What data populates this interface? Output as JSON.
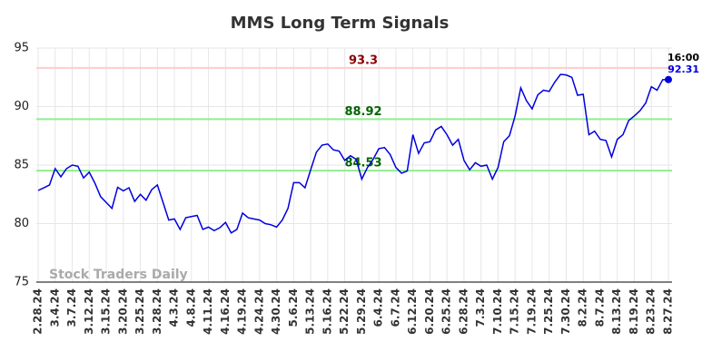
{
  "chart_data": {
    "type": "line",
    "title": "MMS Long Term Signals",
    "watermark": "Stock Traders Daily",
    "categories": [
      "2.28.24",
      null,
      null,
      "3.4.24",
      null,
      null,
      "3.7.24",
      null,
      null,
      "3.12.24",
      null,
      null,
      "3.15.24",
      null,
      null,
      "3.20.24",
      null,
      null,
      "3.25.24",
      null,
      null,
      "3.28.24",
      null,
      null,
      "4.3.24",
      null,
      null,
      "4.8.24",
      null,
      null,
      "4.11.24",
      null,
      null,
      "4.16.24",
      null,
      null,
      "4.19.24",
      null,
      null,
      "4.24.24",
      null,
      null,
      "4.30.24",
      null,
      null,
      "5.6.24",
      null,
      null,
      "5.13.24",
      null,
      null,
      "5.16.24",
      null,
      null,
      "5.22.24",
      null,
      null,
      "5.29.24",
      null,
      null,
      "6.4.24",
      null,
      null,
      "6.7.24",
      null,
      null,
      "6.12.24",
      null,
      null,
      "6.20.24",
      null,
      null,
      "6.25.24",
      null,
      null,
      "6.28.24",
      null,
      null,
      "7.3.24",
      null,
      null,
      "7.10.24",
      null,
      null,
      "7.15.24",
      null,
      null,
      "7.19.24",
      null,
      null,
      "7.25.24",
      null,
      null,
      "7.30.24",
      null,
      null,
      "8.2.24",
      null,
      null,
      "8.7.24",
      null,
      null,
      "8.13.24",
      null,
      null,
      "8.19.24",
      null,
      null,
      "8.23.24",
      null,
      null,
      "8.27.24"
    ],
    "series": [
      {
        "name": "MMS",
        "color": "#0000dd",
        "values": [
          82.83,
          83.06,
          83.3,
          84.7,
          84.0,
          84.7,
          85.0,
          84.9,
          83.9,
          84.4,
          83.45,
          82.3,
          81.8,
          81.3,
          83.1,
          82.8,
          83.06,
          81.9,
          82.5,
          82.0,
          82.9,
          83.3,
          81.8,
          80.3,
          80.4,
          79.5,
          80.5,
          80.6,
          80.7,
          79.5,
          79.7,
          79.4,
          79.65,
          80.1,
          79.2,
          79.5,
          80.9,
          80.5,
          80.4,
          80.3,
          80.0,
          79.9,
          79.7,
          80.3,
          81.3,
          83.5,
          83.5,
          83.06,
          84.6,
          86.1,
          86.7,
          86.8,
          86.3,
          86.2,
          85.4,
          85.8,
          85.5,
          83.8,
          84.8,
          85.5,
          86.4,
          86.5,
          85.9,
          84.8,
          84.3,
          84.5,
          87.6,
          86.0,
          86.9,
          87.0,
          88.0,
          88.3,
          87.6,
          86.7,
          87.2,
          85.4,
          84.6,
          85.2,
          84.9,
          85.0,
          83.8,
          84.8,
          87.0,
          87.5,
          89.2,
          91.6,
          90.5,
          89.8,
          91.0,
          91.4,
          91.3,
          92.1,
          92.75,
          92.7,
          92.5,
          90.97,
          91.05,
          87.6,
          87.9,
          87.2,
          87.1,
          85.7,
          87.2,
          87.6,
          88.8,
          89.2,
          89.65,
          90.3,
          91.7,
          91.4,
          92.3,
          92.31
        ]
      }
    ],
    "last_point_time": "16:00",
    "reference_lines": [
      {
        "value": 93.3,
        "line_color": "#ffcccc",
        "label_color": "#8b0000"
      },
      {
        "value": 88.92,
        "line_color": "#90ee90",
        "label_color": "#006400"
      },
      {
        "value": 84.53,
        "line_color": "#90ee90",
        "label_color": "#006400"
      }
    ],
    "ylim": [
      75,
      95
    ],
    "yticks": [
      75,
      80,
      85,
      90,
      95
    ],
    "grid": true
  }
}
